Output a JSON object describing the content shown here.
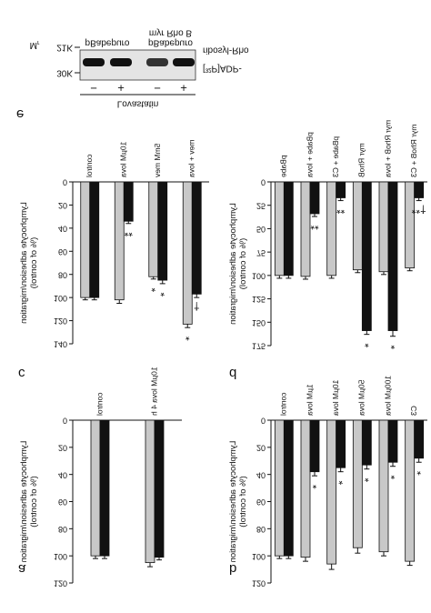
{
  "chart_data": [
    {
      "type": "bar",
      "panel": "a",
      "ylabel": [
        "Lymphocyte adhesion/migration",
        "(% of control)"
      ],
      "categories": [
        "control",
        "10µM lova 4 h"
      ],
      "series": [
        {
          "color": "#c8c8c8",
          "values": [
            100,
            105
          ],
          "errors": [
            2,
            3
          ]
        },
        {
          "color": "#111111",
          "values": [
            100,
            101
          ],
          "errors": [
            2,
            2
          ]
        }
      ],
      "ylim": [
        0,
        120
      ],
      "yticks": [
        0,
        20,
        40,
        60,
        80,
        100,
        120
      ]
    },
    {
      "type": "bar",
      "panel": "b",
      "ylabel": [
        "Lymphocyte adhesion/migration",
        "(% of control)"
      ],
      "categories": [
        "control",
        "1µM lova",
        "10µM lova",
        "50µM lova",
        "100µM lova",
        "C3"
      ],
      "series": [
        {
          "color": "#c8c8c8",
          "values": [
            100,
            101,
            106,
            94,
            97,
            104
          ],
          "errors": [
            2,
            3,
            4,
            4,
            3,
            3
          ]
        },
        {
          "color": "#111111",
          "values": [
            100,
            38,
            35,
            33,
            31,
            28
          ],
          "errors": [
            2,
            3,
            3,
            3,
            3,
            3
          ],
          "significance": [
            null,
            "*",
            "*",
            "*",
            "*",
            "*"
          ]
        }
      ],
      "ylim": [
        0,
        120
      ],
      "yticks": [
        0,
        20,
        40,
        60,
        80,
        100,
        120
      ]
    },
    {
      "type": "bar",
      "panel": "c",
      "ylabel": [
        "Lymphocyte adhesion/migration",
        "(% of control)"
      ],
      "categories": [
        "control",
        "10µM lova",
        "5mM mev",
        "mev + lova"
      ],
      "series": [
        {
          "color": "#c8c8c8",
          "values": [
            100,
            102,
            82,
            123
          ],
          "errors": [
            2,
            3,
            2,
            3
          ],
          "significance": [
            null,
            null,
            "*",
            "*"
          ]
        },
        {
          "color": "#111111",
          "values": [
            100,
            34,
            85,
            97
          ],
          "errors": [
            2,
            2,
            3,
            3
          ],
          "significance": [
            null,
            "**",
            "*",
            "†"
          ]
        }
      ],
      "ylim": [
        0,
        140
      ],
      "yticks": [
        0,
        20,
        40,
        60,
        80,
        100,
        120,
        140
      ]
    },
    {
      "type": "bar",
      "panel": "d",
      "ylabel": [
        "Lymphocyte adhesion/migration",
        "(% of control)"
      ],
      "categories": [
        "pBabe",
        "pBabe + lova",
        "pBabe + C3",
        "myr RhoB",
        "myr RhoB + lova",
        "myr RhoB + C3"
      ],
      "series": [
        {
          "color": "#c8c8c8",
          "values": [
            100,
            101,
            100,
            94,
            96,
            92
          ],
          "errors": [
            3,
            3,
            3,
            3,
            3,
            3
          ]
        },
        {
          "color": "#111111",
          "values": [
            100,
            34,
            17,
            159,
            159,
            17
          ],
          "errors": [
            3,
            3,
            3,
            4,
            6,
            3
          ],
          "significance": [
            null,
            "**",
            "**",
            "*",
            "*",
            "**†"
          ]
        }
      ],
      "ylim": [
        0,
        175
      ],
      "yticks": [
        0,
        25,
        50,
        75,
        100,
        125,
        150,
        175
      ]
    }
  ],
  "blot": {
    "panel": "e",
    "mr": "M",
    "mr_sub": "r",
    "markers": [
      "30K",
      "21K"
    ],
    "lane_groups": [
      [
        "pBabepuro"
      ],
      [
        "pBabepuro",
        "myr Rho B"
      ]
    ],
    "treatment": "Lovastatin",
    "lanes": [
      "−",
      "+",
      "−",
      "+"
    ],
    "band_label": [
      "[³²P]ADP-",
      "ribosyl-Rho"
    ]
  }
}
